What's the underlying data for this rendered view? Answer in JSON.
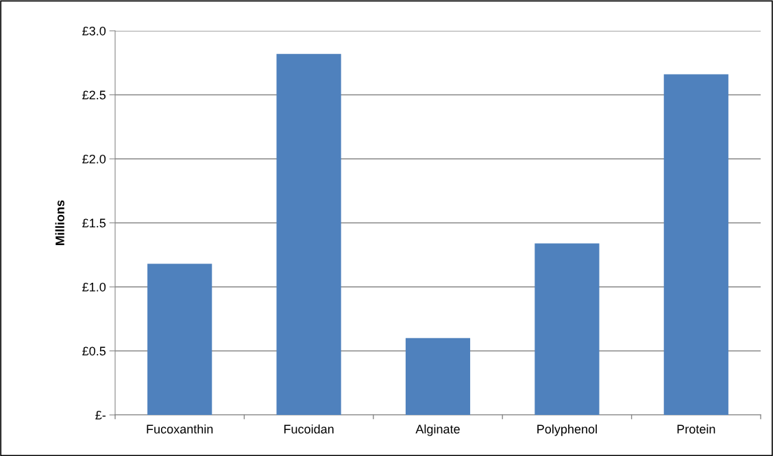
{
  "chart_data": {
    "type": "bar",
    "ylabel": "Millions",
    "categories": [
      "Fucoxanthin",
      "Fucoidan",
      "Alginate",
      "Polyphenol",
      "Protein"
    ],
    "values": [
      1.18,
      2.82,
      0.6,
      1.34,
      2.66
    ],
    "color": "#4f81bd",
    "ylim": [
      0,
      3.0
    ],
    "yticks": [
      {
        "value": 0,
        "label": "£-"
      },
      {
        "value": 0.5,
        "label": "£0.5"
      },
      {
        "value": 1.0,
        "label": "£1.0"
      },
      {
        "value": 1.5,
        "label": "£1.5"
      },
      {
        "value": 2.0,
        "label": "£2.0"
      },
      {
        "value": 2.5,
        "label": "£2.5"
      },
      {
        "value": 3.0,
        "label": "£3.0"
      }
    ],
    "grid": "y"
  }
}
